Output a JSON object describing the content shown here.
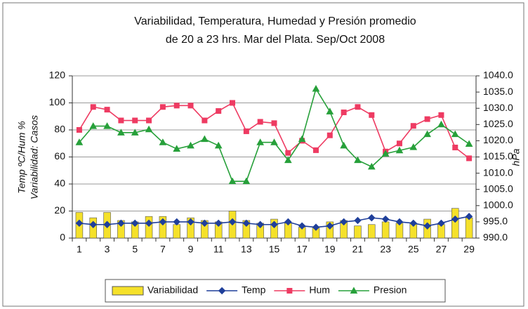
{
  "chart_data": {
    "type": "combo",
    "title": [
      "Variabilidad, Temperatura, Humedad y Presión promedio",
      "de 20 a 23 hrs.  Mar del Plata.  Sep/Oct 2008"
    ],
    "y_label": [
      "Temp ºC/Hum %",
      "Variabilidad: Casos"
    ],
    "y2_label": "hPa",
    "categories": [
      1,
      null,
      3,
      null,
      5,
      null,
      7,
      null,
      9,
      null,
      11,
      null,
      13,
      null,
      15,
      null,
      17,
      null,
      19,
      null,
      21,
      null,
      23,
      null,
      25,
      null,
      27,
      null,
      29
    ],
    "ylim": [
      0,
      120
    ],
    "yticks": [
      0,
      20,
      40,
      60,
      80,
      100,
      120
    ],
    "y2lim": [
      990,
      1040
    ],
    "y2ticks": [
      {
        "value": 990,
        "label": "990.0"
      },
      {
        "value": 995,
        "label": "995.0"
      },
      {
        "value": 1000,
        "label": "1000.0"
      },
      {
        "value": 1005,
        "label": "1005.0"
      },
      {
        "value": 1010,
        "label": "1010.0"
      },
      {
        "value": 1015,
        "label": "1015.0"
      },
      {
        "value": 1020,
        "label": "1020.0"
      },
      {
        "value": 1025,
        "label": "1025.0"
      },
      {
        "value": 1030,
        "label": "1030.0"
      },
      {
        "value": 1035,
        "label": "1035.0"
      },
      {
        "value": 1040,
        "label": "1040.0"
      }
    ],
    "grid": true,
    "legend": "bottom",
    "series": [
      {
        "name": "Variabilidad",
        "type": "bar",
        "color": "#f5e12a",
        "values": [
          19,
          15,
          19,
          13,
          12,
          16,
          16,
          10,
          15,
          13,
          12,
          20,
          13,
          11,
          14,
          11,
          8,
          8,
          12,
          13,
          9,
          10,
          12,
          11,
          11,
          14,
          10,
          22,
          15
        ]
      },
      {
        "name": "Temp",
        "type": "line",
        "marker": "diamond",
        "color": "#1f3f9a",
        "values": [
          11,
          10,
          10,
          11,
          11,
          11,
          12,
          12,
          12,
          11,
          11,
          12,
          11,
          10,
          10,
          12,
          9,
          8,
          9,
          12,
          13,
          15,
          14,
          12,
          11,
          9,
          11,
          14,
          16
        ]
      },
      {
        "name": "Hum",
        "type": "line",
        "marker": "square",
        "color": "#ee3b62",
        "values": [
          80,
          97,
          95,
          87,
          87,
          87,
          97,
          98,
          98,
          87,
          94,
          100,
          79,
          86,
          85,
          63,
          72,
          65,
          76,
          93,
          97,
          91,
          64,
          70,
          83,
          88,
          91,
          67,
          59
        ]
      },
      {
        "name": "Presion",
        "type": "line",
        "marker": "triangle",
        "axis": "y2",
        "color": "#27a03a",
        "values": [
          1019.5,
          1024.5,
          1024.5,
          1022.5,
          1022.5,
          1023.5,
          1019.5,
          1017.5,
          1018.5,
          1020.5,
          1018.5,
          1007.5,
          1007.5,
          1019.5,
          1019.5,
          1014,
          1020.5,
          1036,
          1029,
          1018.5,
          1014,
          1012,
          1016,
          1017,
          1018,
          1022,
          1025,
          1022,
          1019
        ]
      }
    ]
  }
}
